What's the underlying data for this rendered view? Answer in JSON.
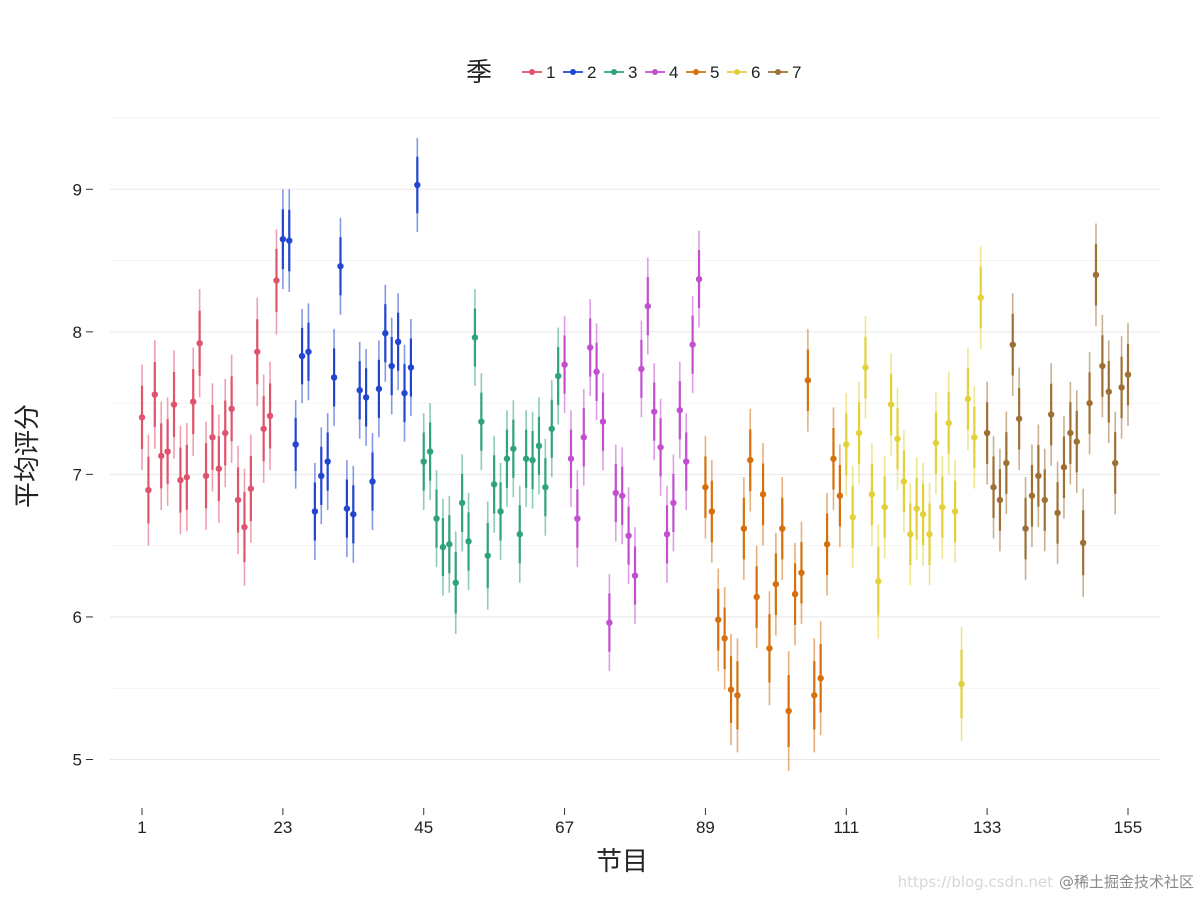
{
  "chart_data": {
    "type": "scatter",
    "subtype": "point-with-errorbars",
    "legend": {
      "title": "季",
      "placement": "top"
    },
    "xlabel": "节目",
    "ylabel": "平均评分",
    "x_ticks": [
      1,
      23,
      45,
      67,
      89,
      111,
      133,
      155
    ],
    "y_ticks": [
      5,
      6,
      7,
      8,
      9
    ],
    "xlim": [
      -4,
      160
    ],
    "ylim": [
      4.8,
      9.5
    ],
    "grid": true,
    "series": [
      {
        "name": "1",
        "color": "#e0536d",
        "points": [
          {
            "x": 1,
            "y": 7.4,
            "lo": 7.03,
            "hi": 7.77
          },
          {
            "x": 2,
            "y": 6.89,
            "lo": 6.5,
            "hi": 7.28
          },
          {
            "x": 3,
            "y": 7.56,
            "lo": 7.18,
            "hi": 7.94
          },
          {
            "x": 4,
            "y": 7.13,
            "lo": 6.75,
            "hi": 7.51
          },
          {
            "x": 5,
            "y": 7.16,
            "lo": 6.78,
            "hi": 7.54
          },
          {
            "x": 6,
            "y": 7.49,
            "lo": 7.11,
            "hi": 7.87
          },
          {
            "x": 7,
            "y": 6.96,
            "lo": 6.58,
            "hi": 7.34
          },
          {
            "x": 8,
            "y": 6.98,
            "lo": 6.6,
            "hi": 7.36
          },
          {
            "x": 9,
            "y": 7.51,
            "lo": 7.13,
            "hi": 7.89
          },
          {
            "x": 10,
            "y": 7.92,
            "lo": 7.54,
            "hi": 8.3
          },
          {
            "x": 11,
            "y": 6.99,
            "lo": 6.61,
            "hi": 7.37
          },
          {
            "x": 12,
            "y": 7.26,
            "lo": 6.88,
            "hi": 7.64
          },
          {
            "x": 13,
            "y": 7.04,
            "lo": 6.66,
            "hi": 7.42
          },
          {
            "x": 14,
            "y": 7.29,
            "lo": 6.91,
            "hi": 7.67
          },
          {
            "x": 15,
            "y": 7.46,
            "lo": 7.08,
            "hi": 7.84
          },
          {
            "x": 16,
            "y": 6.82,
            "lo": 6.44,
            "hi": 7.2
          },
          {
            "x": 17,
            "y": 6.63,
            "lo": 6.22,
            "hi": 7.04
          },
          {
            "x": 18,
            "y": 6.9,
            "lo": 6.52,
            "hi": 7.28
          },
          {
            "x": 19,
            "y": 7.86,
            "lo": 7.48,
            "hi": 8.24
          },
          {
            "x": 20,
            "y": 7.32,
            "lo": 6.94,
            "hi": 7.7
          },
          {
            "x": 21,
            "y": 7.41,
            "lo": 7.03,
            "hi": 7.79
          },
          {
            "x": 22,
            "y": 8.36,
            "lo": 7.98,
            "hi": 8.72
          }
        ]
      },
      {
        "name": "2",
        "color": "#2346d1",
        "points": [
          {
            "x": 23,
            "y": 8.65,
            "lo": 8.3,
            "hi": 9.0
          },
          {
            "x": 24,
            "y": 8.64,
            "lo": 8.28,
            "hi": 9.0
          },
          {
            "x": 25,
            "y": 7.21,
            "lo": 6.9,
            "hi": 7.52
          },
          {
            "x": 26,
            "y": 7.83,
            "lo": 7.5,
            "hi": 8.16
          },
          {
            "x": 27,
            "y": 7.86,
            "lo": 7.52,
            "hi": 8.2
          },
          {
            "x": 28,
            "y": 6.74,
            "lo": 6.4,
            "hi": 7.08
          },
          {
            "x": 29,
            "y": 6.99,
            "lo": 6.65,
            "hi": 7.33
          },
          {
            "x": 30,
            "y": 7.09,
            "lo": 6.75,
            "hi": 7.43
          },
          {
            "x": 31,
            "y": 7.68,
            "lo": 7.34,
            "hi": 8.02
          },
          {
            "x": 32,
            "y": 8.46,
            "lo": 8.12,
            "hi": 8.8
          },
          {
            "x": 33,
            "y": 6.76,
            "lo": 6.42,
            "hi": 7.1
          },
          {
            "x": 34,
            "y": 6.72,
            "lo": 6.38,
            "hi": 7.06
          },
          {
            "x": 35,
            "y": 7.59,
            "lo": 7.25,
            "hi": 7.93
          },
          {
            "x": 36,
            "y": 7.54,
            "lo": 7.2,
            "hi": 7.88
          },
          {
            "x": 37,
            "y": 6.95,
            "lo": 6.61,
            "hi": 7.29
          },
          {
            "x": 38,
            "y": 7.6,
            "lo": 7.26,
            "hi": 7.94
          },
          {
            "x": 39,
            "y": 7.99,
            "lo": 7.65,
            "hi": 8.33
          },
          {
            "x": 40,
            "y": 7.76,
            "lo": 7.42,
            "hi": 8.1
          },
          {
            "x": 41,
            "y": 7.93,
            "lo": 7.59,
            "hi": 8.27
          },
          {
            "x": 42,
            "y": 7.57,
            "lo": 7.23,
            "hi": 7.91
          },
          {
            "x": 43,
            "y": 7.75,
            "lo": 7.41,
            "hi": 8.09
          },
          {
            "x": 44,
            "y": 9.03,
            "lo": 8.7,
            "hi": 9.36
          }
        ]
      },
      {
        "name": "3",
        "color": "#2fa37a",
        "points": [
          {
            "x": 45,
            "y": 7.09,
            "lo": 6.75,
            "hi": 7.43
          },
          {
            "x": 46,
            "y": 7.16,
            "lo": 6.82,
            "hi": 7.5
          },
          {
            "x": 47,
            "y": 6.69,
            "lo": 6.35,
            "hi": 7.03
          },
          {
            "x": 48,
            "y": 6.49,
            "lo": 6.15,
            "hi": 6.83
          },
          {
            "x": 49,
            "y": 6.51,
            "lo": 6.17,
            "hi": 6.85
          },
          {
            "x": 50,
            "y": 6.24,
            "lo": 5.88,
            "hi": 6.6
          },
          {
            "x": 51,
            "y": 6.8,
            "lo": 6.46,
            "hi": 7.14
          },
          {
            "x": 52,
            "y": 6.53,
            "lo": 6.19,
            "hi": 6.87
          },
          {
            "x": 53,
            "y": 7.96,
            "lo": 7.62,
            "hi": 8.3
          },
          {
            "x": 54,
            "y": 7.37,
            "lo": 7.03,
            "hi": 7.71
          },
          {
            "x": 55,
            "y": 6.43,
            "lo": 6.05,
            "hi": 6.81
          },
          {
            "x": 56,
            "y": 6.93,
            "lo": 6.59,
            "hi": 7.27
          },
          {
            "x": 57,
            "y": 6.74,
            "lo": 6.4,
            "hi": 7.08
          },
          {
            "x": 58,
            "y": 7.11,
            "lo": 6.77,
            "hi": 7.45
          },
          {
            "x": 59,
            "y": 7.18,
            "lo": 6.84,
            "hi": 7.52
          },
          {
            "x": 60,
            "y": 6.58,
            "lo": 6.24,
            "hi": 6.92
          },
          {
            "x": 61,
            "y": 7.11,
            "lo": 6.77,
            "hi": 7.45
          },
          {
            "x": 62,
            "y": 7.1,
            "lo": 6.76,
            "hi": 7.44
          },
          {
            "x": 63,
            "y": 7.2,
            "lo": 6.86,
            "hi": 7.54
          },
          {
            "x": 64,
            "y": 6.91,
            "lo": 6.57,
            "hi": 7.25
          },
          {
            "x": 65,
            "y": 7.32,
            "lo": 6.98,
            "hi": 7.66
          },
          {
            "x": 66,
            "y": 7.69,
            "lo": 7.35,
            "hi": 8.03
          }
        ]
      },
      {
        "name": "4",
        "color": "#c24fd0",
        "points": [
          {
            "x": 67,
            "y": 7.77,
            "lo": 7.43,
            "hi": 8.11
          },
          {
            "x": 68,
            "y": 7.11,
            "lo": 6.77,
            "hi": 7.45
          },
          {
            "x": 69,
            "y": 6.69,
            "lo": 6.35,
            "hi": 7.03
          },
          {
            "x": 70,
            "y": 7.26,
            "lo": 6.92,
            "hi": 7.6
          },
          {
            "x": 71,
            "y": 7.89,
            "lo": 7.55,
            "hi": 8.23
          },
          {
            "x": 72,
            "y": 7.72,
            "lo": 7.38,
            "hi": 8.06
          },
          {
            "x": 73,
            "y": 7.37,
            "lo": 7.03,
            "hi": 7.71
          },
          {
            "x": 74,
            "y": 5.96,
            "lo": 5.62,
            "hi": 6.3
          },
          {
            "x": 75,
            "y": 6.87,
            "lo": 6.53,
            "hi": 7.21
          },
          {
            "x": 76,
            "y": 6.85,
            "lo": 6.51,
            "hi": 7.19
          },
          {
            "x": 77,
            "y": 6.57,
            "lo": 6.23,
            "hi": 6.91
          },
          {
            "x": 78,
            "y": 6.29,
            "lo": 5.95,
            "hi": 6.63
          },
          {
            "x": 79,
            "y": 7.74,
            "lo": 7.4,
            "hi": 8.08
          },
          {
            "x": 80,
            "y": 8.18,
            "lo": 7.84,
            "hi": 8.52
          },
          {
            "x": 81,
            "y": 7.44,
            "lo": 7.1,
            "hi": 7.78
          },
          {
            "x": 82,
            "y": 7.19,
            "lo": 6.85,
            "hi": 7.53
          },
          {
            "x": 83,
            "y": 6.58,
            "lo": 6.24,
            "hi": 6.92
          },
          {
            "x": 84,
            "y": 6.8,
            "lo": 6.46,
            "hi": 7.14
          },
          {
            "x": 85,
            "y": 7.45,
            "lo": 7.11,
            "hi": 7.79
          },
          {
            "x": 86,
            "y": 7.09,
            "lo": 6.75,
            "hi": 7.43
          },
          {
            "x": 87,
            "y": 7.91,
            "lo": 7.57,
            "hi": 8.25
          },
          {
            "x": 88,
            "y": 8.37,
            "lo": 8.03,
            "hi": 8.71
          }
        ]
      },
      {
        "name": "5",
        "color": "#d5700c",
        "points": [
          {
            "x": 89,
            "y": 6.91,
            "lo": 6.55,
            "hi": 7.27
          },
          {
            "x": 90,
            "y": 6.74,
            "lo": 6.38,
            "hi": 7.1
          },
          {
            "x": 91,
            "y": 5.98,
            "lo": 5.62,
            "hi": 6.34
          },
          {
            "x": 92,
            "y": 5.85,
            "lo": 5.49,
            "hi": 6.21
          },
          {
            "x": 93,
            "y": 5.49,
            "lo": 5.1,
            "hi": 5.88
          },
          {
            "x": 94,
            "y": 5.45,
            "lo": 5.05,
            "hi": 5.85
          },
          {
            "x": 95,
            "y": 6.62,
            "lo": 6.26,
            "hi": 6.98
          },
          {
            "x": 96,
            "y": 7.1,
            "lo": 6.74,
            "hi": 7.46
          },
          {
            "x": 97,
            "y": 6.14,
            "lo": 5.78,
            "hi": 6.5
          },
          {
            "x": 98,
            "y": 6.86,
            "lo": 6.5,
            "hi": 7.22
          },
          {
            "x": 99,
            "y": 5.78,
            "lo": 5.38,
            "hi": 6.18
          },
          {
            "x": 100,
            "y": 6.23,
            "lo": 5.87,
            "hi": 6.59
          },
          {
            "x": 101,
            "y": 6.62,
            "lo": 6.26,
            "hi": 6.98
          },
          {
            "x": 102,
            "y": 5.34,
            "lo": 4.92,
            "hi": 5.76
          },
          {
            "x": 103,
            "y": 6.16,
            "lo": 5.8,
            "hi": 6.52
          },
          {
            "x": 104,
            "y": 6.31,
            "lo": 5.95,
            "hi": 6.67
          },
          {
            "x": 105,
            "y": 7.66,
            "lo": 7.3,
            "hi": 8.02
          },
          {
            "x": 106,
            "y": 5.45,
            "lo": 5.05,
            "hi": 5.85
          },
          {
            "x": 107,
            "y": 5.57,
            "lo": 5.17,
            "hi": 5.97
          },
          {
            "x": 108,
            "y": 6.51,
            "lo": 6.15,
            "hi": 6.87
          },
          {
            "x": 109,
            "y": 7.11,
            "lo": 6.75,
            "hi": 7.47
          },
          {
            "x": 110,
            "y": 6.85,
            "lo": 6.49,
            "hi": 7.21
          }
        ]
      },
      {
        "name": "6",
        "color": "#e2d13a",
        "points": [
          {
            "x": 111,
            "y": 7.21,
            "lo": 6.85,
            "hi": 7.57
          },
          {
            "x": 112,
            "y": 6.7,
            "lo": 6.34,
            "hi": 7.06
          },
          {
            "x": 113,
            "y": 7.29,
            "lo": 6.93,
            "hi": 7.65
          },
          {
            "x": 114,
            "y": 7.75,
            "lo": 7.39,
            "hi": 8.11
          },
          {
            "x": 115,
            "y": 6.86,
            "lo": 6.5,
            "hi": 7.22
          },
          {
            "x": 116,
            "y": 6.25,
            "lo": 5.85,
            "hi": 6.65
          },
          {
            "x": 117,
            "y": 6.77,
            "lo": 6.41,
            "hi": 7.13
          },
          {
            "x": 118,
            "y": 7.49,
            "lo": 7.13,
            "hi": 7.85
          },
          {
            "x": 119,
            "y": 7.25,
            "lo": 6.89,
            "hi": 7.61
          },
          {
            "x": 120,
            "y": 6.95,
            "lo": 6.59,
            "hi": 7.31
          },
          {
            "x": 121,
            "y": 6.58,
            "lo": 6.22,
            "hi": 6.94
          },
          {
            "x": 122,
            "y": 6.76,
            "lo": 6.4,
            "hi": 7.12
          },
          {
            "x": 123,
            "y": 6.72,
            "lo": 6.36,
            "hi": 7.08
          },
          {
            "x": 124,
            "y": 6.58,
            "lo": 6.22,
            "hi": 6.94
          },
          {
            "x": 125,
            "y": 7.22,
            "lo": 6.86,
            "hi": 7.58
          },
          {
            "x": 126,
            "y": 6.77,
            "lo": 6.41,
            "hi": 7.13
          },
          {
            "x": 127,
            "y": 7.36,
            "lo": 7.0,
            "hi": 7.72
          },
          {
            "x": 128,
            "y": 6.74,
            "lo": 6.38,
            "hi": 7.1
          },
          {
            "x": 129,
            "y": 5.53,
            "lo": 5.13,
            "hi": 5.93
          },
          {
            "x": 130,
            "y": 7.53,
            "lo": 7.17,
            "hi": 7.89
          },
          {
            "x": 131,
            "y": 7.26,
            "lo": 6.9,
            "hi": 7.62
          },
          {
            "x": 132,
            "y": 8.24,
            "lo": 7.88,
            "hi": 8.6
          }
        ]
      },
      {
        "name": "7",
        "color": "#9e7034",
        "points": [
          {
            "x": 133,
            "y": 7.29,
            "lo": 6.93,
            "hi": 7.65
          },
          {
            "x": 134,
            "y": 6.91,
            "lo": 6.55,
            "hi": 7.27
          },
          {
            "x": 135,
            "y": 6.82,
            "lo": 6.46,
            "hi": 7.18
          },
          {
            "x": 136,
            "y": 7.08,
            "lo": 6.72,
            "hi": 7.44
          },
          {
            "x": 137,
            "y": 7.91,
            "lo": 7.55,
            "hi": 8.27
          },
          {
            "x": 138,
            "y": 7.39,
            "lo": 7.03,
            "hi": 7.75
          },
          {
            "x": 139,
            "y": 6.62,
            "lo": 6.26,
            "hi": 6.98
          },
          {
            "x": 140,
            "y": 6.85,
            "lo": 6.49,
            "hi": 7.21
          },
          {
            "x": 141,
            "y": 6.99,
            "lo": 6.63,
            "hi": 7.35
          },
          {
            "x": 142,
            "y": 6.82,
            "lo": 6.46,
            "hi": 7.18
          },
          {
            "x": 143,
            "y": 7.42,
            "lo": 7.06,
            "hi": 7.78
          },
          {
            "x": 144,
            "y": 6.73,
            "lo": 6.37,
            "hi": 7.09
          },
          {
            "x": 145,
            "y": 7.05,
            "lo": 6.69,
            "hi": 7.41
          },
          {
            "x": 146,
            "y": 7.29,
            "lo": 6.93,
            "hi": 7.65
          },
          {
            "x": 147,
            "y": 7.23,
            "lo": 6.87,
            "hi": 7.59
          },
          {
            "x": 148,
            "y": 6.52,
            "lo": 6.14,
            "hi": 6.9
          },
          {
            "x": 149,
            "y": 7.5,
            "lo": 7.14,
            "hi": 7.86
          },
          {
            "x": 150,
            "y": 8.4,
            "lo": 8.04,
            "hi": 8.76
          },
          {
            "x": 151,
            "y": 7.76,
            "lo": 7.4,
            "hi": 8.12
          },
          {
            "x": 152,
            "y": 7.58,
            "lo": 7.22,
            "hi": 7.94
          },
          {
            "x": 153,
            "y": 7.08,
            "lo": 6.72,
            "hi": 7.44
          },
          {
            "x": 154,
            "y": 7.61,
            "lo": 7.25,
            "hi": 7.97
          },
          {
            "x": 155,
            "y": 7.7,
            "lo": 7.34,
            "hi": 8.06
          }
        ]
      }
    ]
  },
  "watermark": {
    "faint": "https://blog.csdn.net",
    "text": "@稀土掘金技术社区"
  }
}
